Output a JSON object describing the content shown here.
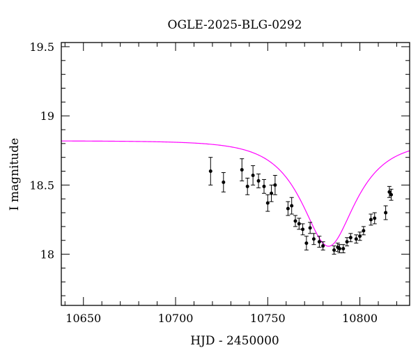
{
  "chart_data": {
    "type": "scatter",
    "title": "OGLE-2025-BLG-0292",
    "xlabel": "HJD - 2450000",
    "ylabel": "I magnitude",
    "xlim": [
      10638,
      10827
    ],
    "ylim": [
      19.53,
      17.63
    ],
    "y_inverted": true,
    "grid": false,
    "x_major_ticks": [
      10650,
      10700,
      10750,
      10800
    ],
    "x_tick_labels": [
      "10650",
      "10700",
      "10750",
      "10800"
    ],
    "y_major_ticks": [
      18,
      18.5,
      19,
      19.5
    ],
    "y_tick_labels": [
      "18",
      "18.5",
      "19",
      "19.5"
    ],
    "colors": {
      "model": "#ff00ff",
      "points": "#000000"
    },
    "model": {
      "baseline": 18.82,
      "t0": 10783,
      "u0": 0.55,
      "tE": 24
    },
    "series": [
      {
        "points": [
          {
            "x": 10719,
            "y": 18.6,
            "err": 0.1
          },
          {
            "x": 10726,
            "y": 18.52,
            "err": 0.07
          },
          {
            "x": 10736,
            "y": 18.61,
            "err": 0.08
          },
          {
            "x": 10739,
            "y": 18.49,
            "err": 0.06
          },
          {
            "x": 10742,
            "y": 18.57,
            "err": 0.07
          },
          {
            "x": 10745,
            "y": 18.53,
            "err": 0.05
          },
          {
            "x": 10748,
            "y": 18.49,
            "err": 0.05
          },
          {
            "x": 10750,
            "y": 18.37,
            "err": 0.06
          },
          {
            "x": 10752,
            "y": 18.44,
            "err": 0.06
          },
          {
            "x": 10754,
            "y": 18.5,
            "err": 0.07
          },
          {
            "x": 10761,
            "y": 18.33,
            "err": 0.05
          },
          {
            "x": 10763,
            "y": 18.35,
            "err": 0.06
          },
          {
            "x": 10765,
            "y": 18.24,
            "err": 0.04
          },
          {
            "x": 10767,
            "y": 18.22,
            "err": 0.04
          },
          {
            "x": 10769,
            "y": 18.18,
            "err": 0.04
          },
          {
            "x": 10771,
            "y": 18.08,
            "err": 0.05
          },
          {
            "x": 10773,
            "y": 18.19,
            "err": 0.04
          },
          {
            "x": 10775,
            "y": 18.11,
            "err": 0.04
          },
          {
            "x": 10778,
            "y": 18.09,
            "err": 0.04
          },
          {
            "x": 10780,
            "y": 18.06,
            "err": 0.03
          },
          {
            "x": 10786,
            "y": 18.03,
            "err": 0.03
          },
          {
            "x": 10788,
            "y": 18.05,
            "err": 0.03
          },
          {
            "x": 10789,
            "y": 18.04,
            "err": 0.03
          },
          {
            "x": 10791,
            "y": 18.04,
            "err": 0.03
          },
          {
            "x": 10793,
            "y": 18.09,
            "err": 0.03
          },
          {
            "x": 10795,
            "y": 18.12,
            "err": 0.03
          },
          {
            "x": 10798,
            "y": 18.11,
            "err": 0.03
          },
          {
            "x": 10800,
            "y": 18.13,
            "err": 0.03
          },
          {
            "x": 10802,
            "y": 18.17,
            "err": 0.03
          },
          {
            "x": 10806,
            "y": 18.25,
            "err": 0.04
          },
          {
            "x": 10808,
            "y": 18.26,
            "err": 0.04
          },
          {
            "x": 10814,
            "y": 18.3,
            "err": 0.05
          },
          {
            "x": 10816,
            "y": 18.45,
            "err": 0.04
          },
          {
            "x": 10817,
            "y": 18.43,
            "err": 0.04
          }
        ]
      }
    ]
  }
}
